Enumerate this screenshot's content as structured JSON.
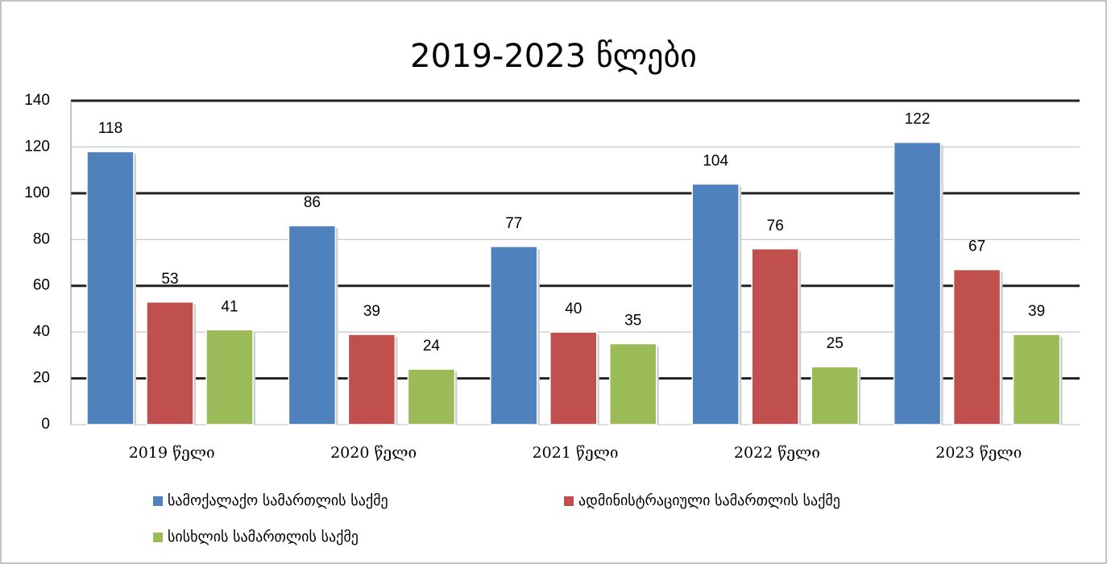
{
  "chart_data": {
    "type": "bar",
    "title": "2019-2023 წლები",
    "categories": [
      "2019 წელი",
      "2020 წელი",
      "2021 წელი",
      "2022 წელი",
      "2023 წელი"
    ],
    "series": [
      {
        "name": "სამოქალაქო სამართლის საქმე",
        "color": "#4f81bd",
        "values": [
          118,
          86,
          77,
          104,
          122
        ]
      },
      {
        "name": "ადმინისტრაციული სამართლის საქმე",
        "color": "#c0504d",
        "values": [
          53,
          39,
          40,
          76,
          67
        ]
      },
      {
        "name": "სისხლის სამართლის საქმე",
        "color": "#9bbb59",
        "values": [
          41,
          24,
          35,
          25,
          39
        ]
      }
    ],
    "ylim": [
      0,
      140
    ],
    "yticks": [
      0,
      20,
      40,
      60,
      80,
      100,
      120,
      140
    ],
    "grid": true
  }
}
